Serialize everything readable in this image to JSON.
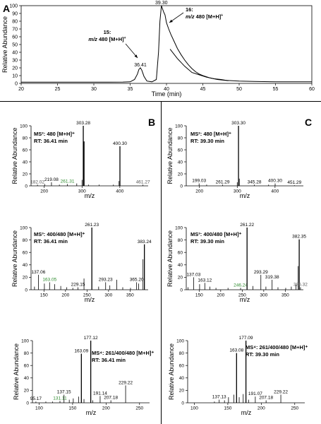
{
  "panel_letters": {
    "a": "A",
    "b": "B",
    "c": "C"
  },
  "colors": {
    "trace": "#000000",
    "axis": "#000000",
    "green_label": "#2e8b2e",
    "gray_label": "#555555"
  },
  "chart_data": [
    {
      "id": "A",
      "type": "line",
      "title": "",
      "xlabel": "Time (min)",
      "ylabel": "Relative Abundance",
      "xlim": [
        20,
        60
      ],
      "ylim": [
        0,
        100
      ],
      "xticks": [
        20,
        25,
        30,
        35,
        40,
        45,
        50,
        55,
        60
      ],
      "yticks": [
        0,
        10,
        20,
        30,
        40,
        50,
        60,
        70,
        80,
        90,
        100
      ],
      "series": [
        {
          "x": [
            20,
            22,
            25,
            28,
            30,
            32,
            34,
            35,
            35.6,
            36.0,
            36.2,
            36.41,
            36.6,
            36.9,
            37.3,
            38.0,
            38.6,
            38.9,
            39.1,
            39.3,
            39.45,
            39.6,
            39.8,
            40.0,
            40.3,
            40.6,
            41.0,
            41.5,
            42.0,
            42.5,
            43.0,
            43.5,
            44.0,
            44.5,
            45.0,
            46.0,
            47.0,
            48.0,
            50.0,
            52.0,
            55.0,
            58.0,
            60.0
          ],
          "y": [
            1.5,
            1.5,
            1.5,
            1.5,
            1.5,
            1.6,
            1.7,
            2.0,
            5.0,
            12.0,
            18.0,
            20.0,
            17.0,
            9.0,
            3.0,
            2.0,
            5.0,
            40.0,
            80.0,
            100.0,
            96.0,
            92.0,
            88.0,
            78.0,
            70.0,
            63.0,
            55.0,
            45.0,
            37.0,
            30.0,
            24.0,
            19.0,
            15.0,
            12.0,
            10.0,
            7.0,
            5.0,
            4.0,
            3.0,
            2.5,
            2.0,
            2.0,
            2.0
          ]
        },
        {
          "x": [
            40.5,
            41.5,
            42.5,
            43.5,
            44.5,
            45.5,
            46.5,
            47.5,
            48.5
          ],
          "y": [
            44.0,
            32.0,
            22.0,
            14.0,
            11.0,
            8.0,
            6.0,
            5.0,
            3.5
          ]
        }
      ],
      "peak_labels": [
        {
          "x": 36.41,
          "y": 20,
          "text": "36.41"
        },
        {
          "x": 39.3,
          "y": 100,
          "text": "39.30"
        }
      ],
      "annotations": [
        {
          "compound": "15:",
          "mz": "m/z",
          "ion": "480 [M+H]",
          "sup": "+"
        },
        {
          "compound": "16:",
          "mz": "m/z",
          "ion": "480 [M+H]",
          "sup": "+"
        }
      ]
    },
    {
      "id": "B1",
      "type": "bar",
      "xlabel": "m/z",
      "ylabel": "Relative Abundance",
      "xlim": [
        165,
        475
      ],
      "ylim": [
        0,
        100
      ],
      "xticks": [
        200,
        300,
        400
      ],
      "yticks": [
        0,
        20,
        40,
        60,
        80,
        100
      ],
      "title_lines": [
        "MS²: 480 [M+H]⁺",
        "RT: 36.41 min"
      ],
      "peaks": [
        {
          "x": 182.02,
          "y": 2,
          "label": "182.02",
          "label_color": "gray"
        },
        {
          "x": 201.0,
          "y": 3
        },
        {
          "x": 219.08,
          "y": 6,
          "label": "219.08"
        },
        {
          "x": 240.0,
          "y": 2
        },
        {
          "x": 261.31,
          "y": 3,
          "label": "261.31",
          "label_color": "green"
        },
        {
          "x": 286.0,
          "y": 4
        },
        {
          "x": 300.0,
          "y": 10
        },
        {
          "x": 303.28,
          "y": 100,
          "label": "303.28"
        },
        {
          "x": 305.3,
          "y": 74
        },
        {
          "x": 317.0,
          "y": 2
        },
        {
          "x": 345.0,
          "y": 2
        },
        {
          "x": 383.0,
          "y": 2
        },
        {
          "x": 398.0,
          "y": 8
        },
        {
          "x": 400.3,
          "y": 66,
          "label": "400.30"
        },
        {
          "x": 461.27,
          "y": 2,
          "label": "461.27",
          "label_color": "gray"
        }
      ]
    },
    {
      "id": "C1",
      "type": "bar",
      "xlabel": "m/z",
      "ylabel": "Relative Abundance",
      "xlim": [
        165,
        475
      ],
      "ylim": [
        0,
        100
      ],
      "xticks": [
        200,
        300,
        400
      ],
      "yticks": [
        0,
        20,
        40,
        60,
        80,
        100
      ],
      "title_lines": [
        "MS²: 480 [M+H]⁺",
        "RT: 39.30 min"
      ],
      "peaks": [
        {
          "x": 199.03,
          "y": 4,
          "label": "199.03"
        },
        {
          "x": 219.0,
          "y": 2
        },
        {
          "x": 261.29,
          "y": 2,
          "label": "261.29"
        },
        {
          "x": 300.0,
          "y": 6
        },
        {
          "x": 303.3,
          "y": 100,
          "label": "303.30"
        },
        {
          "x": 305.5,
          "y": 12
        },
        {
          "x": 345.28,
          "y": 2,
          "label": "345.28"
        },
        {
          "x": 383.0,
          "y": 2
        },
        {
          "x": 400.3,
          "y": 4,
          "label": "400.30"
        },
        {
          "x": 451.29,
          "y": 1,
          "label": "451.29"
        }
      ]
    },
    {
      "id": "B2",
      "type": "bar",
      "xlabel": "m/z",
      "ylabel": "Relative Abundance",
      "xlim": [
        120,
        392
      ],
      "ylim": [
        0,
        100
      ],
      "xticks": [
        150,
        200,
        250,
        300,
        350
      ],
      "yticks": [
        0,
        20,
        40,
        60,
        80,
        100
      ],
      "title_lines": [
        "MS³: 400/480 [M+H]⁺",
        "RT: 36.41 min"
      ],
      "peaks": [
        {
          "x": 128.0,
          "y": 5
        },
        {
          "x": 137.06,
          "y": 24,
          "label": "137.06"
        },
        {
          "x": 151.0,
          "y": 10
        },
        {
          "x": 163.05,
          "y": 12,
          "label": "163.05",
          "label_color": "green"
        },
        {
          "x": 175.0,
          "y": 9
        },
        {
          "x": 189.0,
          "y": 6
        },
        {
          "x": 203.0,
          "y": 4
        },
        {
          "x": 217.0,
          "y": 3
        },
        {
          "x": 229.15,
          "y": 4,
          "label": "229.15"
        },
        {
          "x": 243.0,
          "y": 18
        },
        {
          "x": 261.23,
          "y": 100,
          "label": "261.23"
        },
        {
          "x": 277.0,
          "y": 5
        },
        {
          "x": 293.23,
          "y": 12,
          "label": "293.23"
        },
        {
          "x": 303.0,
          "y": 7
        },
        {
          "x": 319.0,
          "y": 16
        },
        {
          "x": 333.0,
          "y": 4
        },
        {
          "x": 351.0,
          "y": 3
        },
        {
          "x": 365.2,
          "y": 12,
          "label": "365.20"
        },
        {
          "x": 370.0,
          "y": 10
        },
        {
          "x": 380.0,
          "y": 49
        },
        {
          "x": 383.24,
          "y": 73,
          "label": "383.24"
        }
      ]
    },
    {
      "id": "C2",
      "type": "bar",
      "xlabel": "m/z",
      "ylabel": "Relative Abundance",
      "xlim": [
        120,
        392
      ],
      "ylim": [
        0,
        100
      ],
      "xticks": [
        150,
        200,
        250,
        300,
        350
      ],
      "yticks": [
        0,
        20,
        40,
        60,
        80,
        100
      ],
      "title_lines": [
        "MS³: 400/480 [M+H]⁺",
        "RT: 39.30 min"
      ],
      "peaks": [
        {
          "x": 124.0,
          "y": 4
        },
        {
          "x": 137.03,
          "y": 20,
          "label": "137.03"
        },
        {
          "x": 151.0,
          "y": 9
        },
        {
          "x": 163.12,
          "y": 11,
          "label": "163.12"
        },
        {
          "x": 175.0,
          "y": 5
        },
        {
          "x": 189.0,
          "y": 3
        },
        {
          "x": 217.0,
          "y": 3
        },
        {
          "x": 246.24,
          "y": 3,
          "label": "246.24",
          "label_color": "green"
        },
        {
          "x": 261.22,
          "y": 100,
          "label": "261.22"
        },
        {
          "x": 275.0,
          "y": 6
        },
        {
          "x": 293.29,
          "y": 24,
          "label": "293.29"
        },
        {
          "x": 305.0,
          "y": 5
        },
        {
          "x": 319.38,
          "y": 16,
          "label": "319.38"
        },
        {
          "x": 333.0,
          "y": 4
        },
        {
          "x": 351.0,
          "y": 3
        },
        {
          "x": 364.0,
          "y": 5
        },
        {
          "x": 375.0,
          "y": 8
        },
        {
          "x": 380.0,
          "y": 38
        },
        {
          "x": 382.35,
          "y": 81,
          "label": "382.35"
        },
        {
          "x": 385.32,
          "y": 4,
          "label": "385.32",
          "label_color": "gray"
        }
      ]
    },
    {
      "id": "B3",
      "type": "bar",
      "xlabel": "m/z",
      "ylabel": "Relative Abundance",
      "xlim": [
        90,
        265
      ],
      "ylim": [
        0,
        100
      ],
      "xticks": [
        100,
        150,
        200,
        250
      ],
      "yticks": [
        0,
        20,
        40,
        60,
        80,
        100
      ],
      "title_lines": [
        "MS⁴: 261/400/480 [M+H]⁺",
        "RT: 36.41 min"
      ],
      "peaks": [
        {
          "x": 95.17,
          "y": 2,
          "label": "95.17"
        },
        {
          "x": 110.0,
          "y": 2
        },
        {
          "x": 120.0,
          "y": 2
        },
        {
          "x": 131.11,
          "y": 3,
          "label": "131.11",
          "label_color": "green"
        },
        {
          "x": 137.15,
          "y": 13,
          "label": "137.15"
        },
        {
          "x": 145.0,
          "y": 5
        },
        {
          "x": 151.0,
          "y": 7
        },
        {
          "x": 159.0,
          "y": 10
        },
        {
          "x": 163.09,
          "y": 79,
          "label": "163.09"
        },
        {
          "x": 167.0,
          "y": 6
        },
        {
          "x": 177.12,
          "y": 100,
          "label": "177.12"
        },
        {
          "x": 180.0,
          "y": 4
        },
        {
          "x": 191.14,
          "y": 11,
          "label": "191.14"
        },
        {
          "x": 207.18,
          "y": 4,
          "label": "207.18"
        },
        {
          "x": 229.22,
          "y": 28,
          "label": "229.22"
        }
      ]
    },
    {
      "id": "C3",
      "type": "bar",
      "xlabel": "m/z",
      "ylabel": "Relative Abundance",
      "xlim": [
        90,
        265
      ],
      "ylim": [
        0,
        100
      ],
      "xticks": [
        100,
        150,
        200,
        250
      ],
      "yticks": [
        0,
        20,
        40,
        60,
        80,
        100
      ],
      "title_lines": [
        "MS⁴: 261/400/480 [M+H]⁺",
        "RT: 39.30 min"
      ],
      "peaks": [
        {
          "x": 130.0,
          "y": 2
        },
        {
          "x": 137.13,
          "y": 5,
          "label": "137.13"
        },
        {
          "x": 145.0,
          "y": 4
        },
        {
          "x": 151.0,
          "y": 9
        },
        {
          "x": 159.0,
          "y": 13
        },
        {
          "x": 163.08,
          "y": 80,
          "label": "163.08"
        },
        {
          "x": 167.0,
          "y": 9
        },
        {
          "x": 173.0,
          "y": 14
        },
        {
          "x": 177.09,
          "y": 100,
          "label": "177.09"
        },
        {
          "x": 181.0,
          "y": 5
        },
        {
          "x": 191.07,
          "y": 10,
          "label": "191.07"
        },
        {
          "x": 207.18,
          "y": 4,
          "label": "207.18"
        },
        {
          "x": 229.22,
          "y": 13,
          "label": "229.22"
        }
      ]
    }
  ]
}
